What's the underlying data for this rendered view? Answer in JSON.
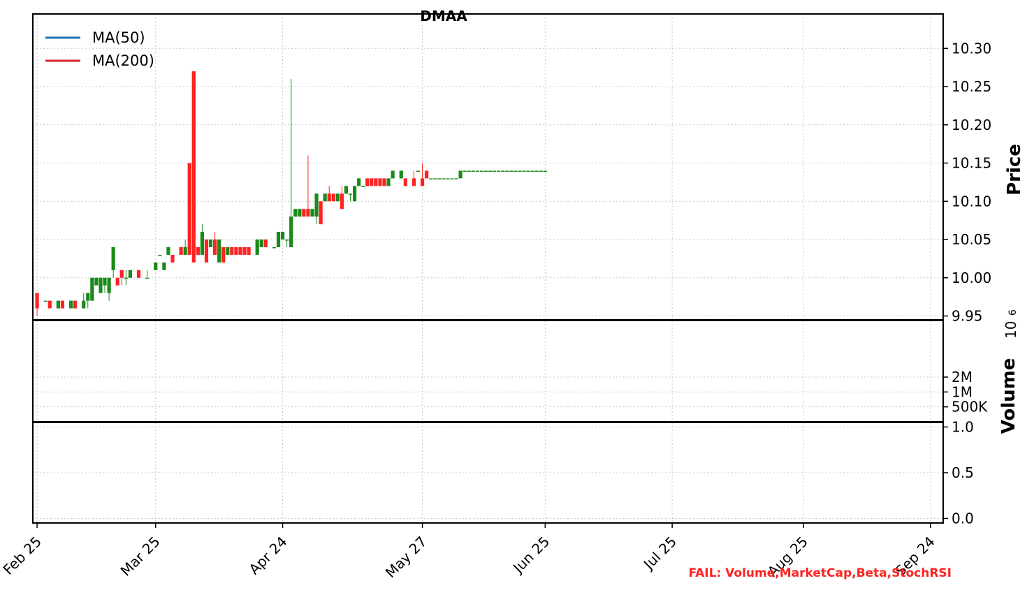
{
  "chart_data": {
    "type": "candlestick",
    "title": "DMAA",
    "x_tick_labels": [
      "Feb 25",
      "Mar 25",
      "Apr 24",
      "May 27",
      "Jun 25",
      "Jul 25",
      "Aug 25",
      "Sep 24"
    ],
    "x_tick_days": [
      0,
      28,
      58,
      91,
      120,
      150,
      181,
      211
    ],
    "legend": [
      {
        "name": "MA(50)",
        "color": "#1f77b4"
      },
      {
        "name": "MA(200)",
        "color": "#d62728"
      }
    ],
    "price_panel": {
      "ylabel": "Price",
      "ylim": [
        9.945,
        10.345
      ],
      "yticks": [
        9.95,
        10.0,
        10.05,
        10.1,
        10.15,
        10.2,
        10.25,
        10.3
      ],
      "ytick_labels": [
        "9.95",
        "10.00",
        "10.05",
        "10.10",
        "10.15",
        "10.20",
        "10.25",
        "10.30"
      ],
      "candle_rows": "day, open, high, low, close",
      "candles": [
        [
          0,
          9.98,
          9.98,
          9.95,
          9.96
        ],
        [
          2,
          9.97,
          9.97,
          9.97,
          9.97
        ],
        [
          3,
          9.97,
          9.97,
          9.96,
          9.96
        ],
        [
          5,
          9.96,
          9.97,
          9.96,
          9.97
        ],
        [
          6,
          9.97,
          9.97,
          9.96,
          9.96
        ],
        [
          8,
          9.96,
          9.97,
          9.96,
          9.97
        ],
        [
          9,
          9.97,
          9.97,
          9.96,
          9.96
        ],
        [
          11,
          9.96,
          9.98,
          9.96,
          9.97
        ],
        [
          12,
          9.97,
          9.98,
          9.96,
          9.98
        ],
        [
          13,
          9.97,
          10.0,
          9.97,
          10.0
        ],
        [
          14,
          9.99,
          10.0,
          9.99,
          10.0
        ],
        [
          15,
          9.98,
          10.0,
          9.98,
          10.0
        ],
        [
          16,
          9.99,
          10.0,
          9.98,
          10.0
        ],
        [
          17,
          9.98,
          10.0,
          9.97,
          10.0
        ],
        [
          18,
          10.01,
          10.04,
          10.0,
          10.04
        ],
        [
          19,
          10.0,
          10.0,
          9.99,
          9.99
        ],
        [
          20,
          10.01,
          10.01,
          9.99,
          10.0
        ],
        [
          21,
          10.0,
          10.01,
          9.99,
          10.0
        ],
        [
          22,
          10.0,
          10.01,
          10.0,
          10.01
        ],
        [
          24,
          10.01,
          10.01,
          10.0,
          10.0
        ],
        [
          26,
          10.0,
          10.01,
          10.0,
          10.0
        ],
        [
          28,
          10.01,
          10.02,
          10.01,
          10.02
        ],
        [
          29,
          10.03,
          10.03,
          10.03,
          10.03
        ],
        [
          30,
          10.01,
          10.02,
          10.01,
          10.02
        ],
        [
          31,
          10.03,
          10.04,
          10.03,
          10.04
        ],
        [
          32,
          10.03,
          10.03,
          10.02,
          10.02
        ],
        [
          34,
          10.04,
          10.04,
          10.03,
          10.03
        ],
        [
          35,
          10.03,
          10.05,
          10.03,
          10.04
        ],
        [
          36,
          10.15,
          10.15,
          10.03,
          10.03
        ],
        [
          37,
          10.27,
          10.27,
          10.02,
          10.02
        ],
        [
          38,
          10.04,
          10.04,
          10.03,
          10.03
        ],
        [
          39,
          10.03,
          10.07,
          10.03,
          10.06
        ],
        [
          40,
          10.05,
          10.05,
          10.02,
          10.02
        ],
        [
          41,
          10.04,
          10.05,
          10.04,
          10.05
        ],
        [
          42,
          10.05,
          10.06,
          10.03,
          10.03
        ],
        [
          43,
          10.02,
          10.05,
          10.02,
          10.05
        ],
        [
          44,
          10.04,
          10.04,
          10.02,
          10.02
        ],
        [
          45,
          10.03,
          10.04,
          10.03,
          10.04
        ],
        [
          46,
          10.04,
          10.04,
          10.03,
          10.03
        ],
        [
          47,
          10.04,
          10.04,
          10.03,
          10.03
        ],
        [
          48,
          10.04,
          10.04,
          10.03,
          10.03
        ],
        [
          49,
          10.04,
          10.04,
          10.03,
          10.03
        ],
        [
          50,
          10.04,
          10.04,
          10.03,
          10.03
        ],
        [
          52,
          10.03,
          10.05,
          10.03,
          10.05
        ],
        [
          53,
          10.04,
          10.05,
          10.04,
          10.05
        ],
        [
          54,
          10.05,
          10.05,
          10.04,
          10.04
        ],
        [
          56,
          10.04,
          10.04,
          10.04,
          10.04
        ],
        [
          57,
          10.04,
          10.06,
          10.04,
          10.06
        ],
        [
          58,
          10.05,
          10.06,
          10.05,
          10.06
        ],
        [
          59,
          10.05,
          10.05,
          10.04,
          10.05
        ],
        [
          60,
          10.04,
          10.26,
          10.04,
          10.08
        ],
        [
          61,
          10.08,
          10.09,
          10.08,
          10.09
        ],
        [
          62,
          10.08,
          10.09,
          10.08,
          10.09
        ],
        [
          63,
          10.09,
          10.09,
          10.08,
          10.08
        ],
        [
          64,
          10.09,
          10.16,
          10.08,
          10.08
        ],
        [
          65,
          10.08,
          10.09,
          10.08,
          10.09
        ],
        [
          66,
          10.08,
          10.11,
          10.07,
          10.11
        ],
        [
          67,
          10.1,
          10.1,
          10.07,
          10.07
        ],
        [
          68,
          10.1,
          10.11,
          10.1,
          10.11
        ],
        [
          69,
          10.11,
          10.12,
          10.1,
          10.1
        ],
        [
          70,
          10.11,
          10.11,
          10.1,
          10.1
        ],
        [
          71,
          10.1,
          10.11,
          10.1,
          10.11
        ],
        [
          72,
          10.11,
          10.12,
          10.09,
          10.09
        ],
        [
          73,
          10.11,
          10.12,
          10.11,
          10.12
        ],
        [
          74,
          10.11,
          10.11,
          10.1,
          10.11
        ],
        [
          75,
          10.1,
          10.12,
          10.1,
          10.12
        ],
        [
          76,
          10.12,
          10.13,
          10.12,
          10.13
        ],
        [
          77,
          10.12,
          10.12,
          10.12,
          10.12
        ],
        [
          78,
          10.13,
          10.13,
          10.12,
          10.12
        ],
        [
          79,
          10.13,
          10.13,
          10.12,
          10.12
        ],
        [
          80,
          10.13,
          10.13,
          10.12,
          10.12
        ],
        [
          81,
          10.13,
          10.13,
          10.12,
          10.12
        ],
        [
          82,
          10.13,
          10.13,
          10.12,
          10.12
        ],
        [
          83,
          10.12,
          10.13,
          10.12,
          10.13
        ],
        [
          84,
          10.13,
          10.14,
          10.13,
          10.14
        ],
        [
          86,
          10.13,
          10.14,
          10.13,
          10.14
        ],
        [
          87,
          10.13,
          10.13,
          10.12,
          10.12
        ],
        [
          89,
          10.13,
          10.14,
          10.12,
          10.12
        ],
        [
          90,
          10.14,
          10.14,
          10.14,
          10.14
        ],
        [
          91,
          10.13,
          10.15,
          10.12,
          10.12
        ],
        [
          92,
          10.14,
          10.14,
          10.13,
          10.13
        ],
        [
          93,
          10.13,
          10.13,
          10.13,
          10.13
        ],
        [
          94,
          10.13,
          10.13,
          10.13,
          10.13
        ],
        [
          95,
          10.13,
          10.13,
          10.13,
          10.13
        ],
        [
          96,
          10.13,
          10.13,
          10.13,
          10.13
        ],
        [
          97,
          10.13,
          10.13,
          10.13,
          10.13
        ],
        [
          98,
          10.13,
          10.13,
          10.13,
          10.13
        ],
        [
          99,
          10.13,
          10.13,
          10.13,
          10.13
        ],
        [
          100,
          10.13,
          10.14,
          10.13,
          10.14
        ],
        [
          101,
          10.14,
          10.14,
          10.14,
          10.14
        ],
        [
          102,
          10.14,
          10.14,
          10.14,
          10.14
        ],
        [
          103,
          10.14,
          10.14,
          10.14,
          10.14
        ],
        [
          104,
          10.14,
          10.14,
          10.14,
          10.14
        ],
        [
          105,
          10.14,
          10.14,
          10.14,
          10.14
        ],
        [
          106,
          10.14,
          10.14,
          10.14,
          10.14
        ],
        [
          107,
          10.14,
          10.14,
          10.14,
          10.14
        ],
        [
          108,
          10.14,
          10.14,
          10.14,
          10.14
        ],
        [
          109,
          10.14,
          10.14,
          10.14,
          10.14
        ],
        [
          110,
          10.14,
          10.14,
          10.14,
          10.14
        ],
        [
          111,
          10.14,
          10.14,
          10.14,
          10.14
        ],
        [
          112,
          10.14,
          10.14,
          10.14,
          10.14
        ],
        [
          113,
          10.14,
          10.14,
          10.14,
          10.14
        ],
        [
          114,
          10.14,
          10.14,
          10.14,
          10.14
        ],
        [
          115,
          10.14,
          10.14,
          10.14,
          10.14
        ],
        [
          116,
          10.14,
          10.14,
          10.14,
          10.14
        ],
        [
          117,
          10.14,
          10.14,
          10.14,
          10.14
        ],
        [
          118,
          10.14,
          10.14,
          10.14,
          10.14
        ],
        [
          119,
          10.14,
          10.14,
          10.14,
          10.14
        ],
        [
          120,
          10.14,
          10.14,
          10.14,
          10.14
        ]
      ]
    },
    "volume_panel": {
      "ylabel": "Volume",
      "scale_label": "10",
      "scale_exponent": "6",
      "ylim": [
        0,
        3.4
      ],
      "ytick_labels": [
        "500K",
        "1M",
        "2M"
      ],
      "ytick_values": [
        0.5,
        1.0,
        1.5
      ]
    },
    "stochrsi_panel": {
      "ylim": [
        -0.05,
        1.05
      ],
      "yticks": [
        0.0,
        0.5,
        1.0
      ],
      "ytick_labels": [
        "0.0",
        "0.5",
        "1.0"
      ]
    },
    "footer": "FAIL: Volume,MarketCap,Beta,StochRSI"
  }
}
